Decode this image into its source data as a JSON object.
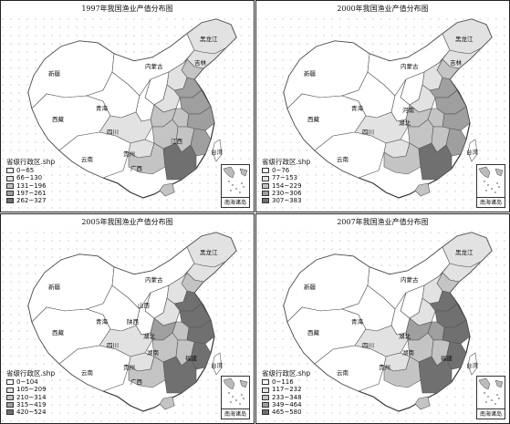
{
  "panels": [
    {
      "title": "1997年我国渔业产值分布图",
      "legend_title": "省级行政区.shp",
      "legend": [
        "0~65",
        "66~130",
        "131~196",
        "197~261",
        "262~327"
      ],
      "labels": [
        "黑龙江",
        "吉林",
        "新疆",
        "内蒙古",
        "西藏",
        "青海",
        "四川",
        "云南",
        "贵州",
        "广西",
        "江西",
        "台湾"
      ],
      "inset_caption": "南海诸岛"
    },
    {
      "title": "2000年我国渔业产值分布图",
      "legend_title": "省级行政区.shp",
      "legend": [
        "0~76",
        "77~153",
        "154~229",
        "230~306",
        "307~383"
      ],
      "labels": [
        "黑龙江",
        "吉林",
        "新疆",
        "内蒙古",
        "西藏",
        "青海",
        "四川",
        "云南",
        "河南",
        "湖北",
        "台湾"
      ],
      "inset_caption": "南海诸岛"
    },
    {
      "title": "2005年我国渔业产值分布图",
      "legend_title": "省级行政区.shp",
      "legend": [
        "0~104",
        "105~209",
        "210~314",
        "315~419",
        "420~524"
      ],
      "labels": [
        "黑龙江",
        "新疆",
        "内蒙古",
        "西藏",
        "青海",
        "山西",
        "陕西",
        "四川",
        "湖北",
        "贵州",
        "湖南",
        "福建",
        "云南",
        "广西",
        "台湾"
      ],
      "inset_caption": "南海诸岛"
    },
    {
      "title": "2007年我国渔业产值分布图",
      "legend_title": "省级行政区.shp",
      "legend": [
        "0~116",
        "117~232",
        "233~348",
        "349~464",
        "465~580"
      ],
      "labels": [
        "黑龙江",
        "新疆",
        "内蒙古",
        "西藏",
        "青海",
        "四川",
        "湖北",
        "贵州",
        "湖南",
        "福建",
        "云南",
        "台湾"
      ],
      "inset_caption": "南海诸岛"
    }
  ],
  "colors": {
    "c0": "#ffffff",
    "c1": "#e2e2e2",
    "c2": "#c4c4c4",
    "c3": "#9f9f9f",
    "c4": "#707070"
  }
}
